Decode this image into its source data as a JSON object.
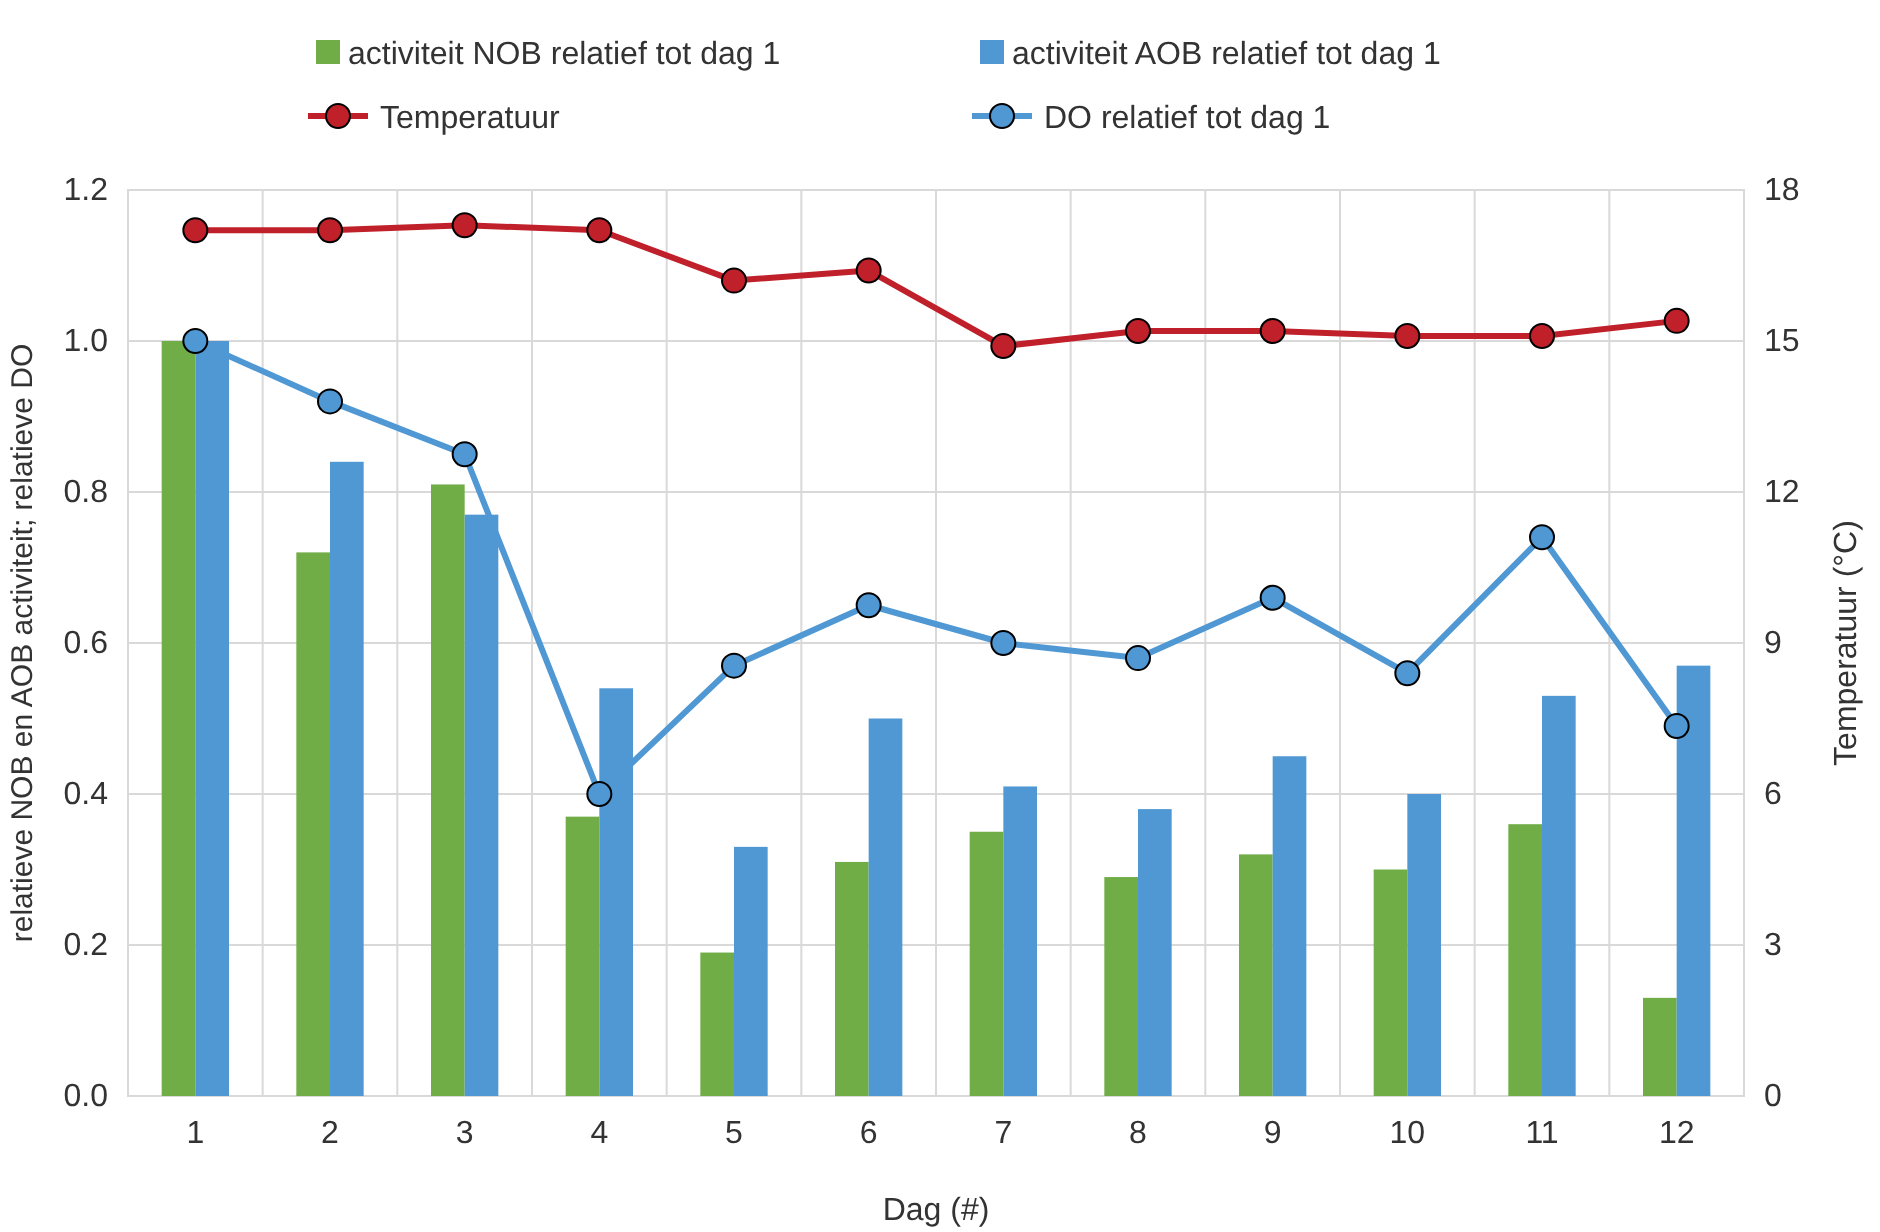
{
  "chart_data": {
    "type": "bar",
    "xlabel": "Dag (#)",
    "ylabel": "relatieve NOB en AOB activiteit; relatieve DO",
    "y2label": "Temperatuur (°C)",
    "categories": [
      "1",
      "2",
      "3",
      "4",
      "5",
      "6",
      "7",
      "8",
      "9",
      "10",
      "11",
      "12"
    ],
    "series": [
      {
        "name": "activiteit NOB relatief tot dag 1",
        "color": "#70ad47",
        "values": [
          1.0,
          0.72,
          0.81,
          0.37,
          0.19,
          0.31,
          0.35,
          0.29,
          0.32,
          0.3,
          0.36,
          0.13
        ]
      },
      {
        "name": "activiteit AOB relatief tot dag 1",
        "color": "#4f98d3",
        "values": [
          1.0,
          0.84,
          0.77,
          0.54,
          0.33,
          0.5,
          0.41,
          0.38,
          0.45,
          0.4,
          0.53,
          0.57
        ]
      },
      {
        "name": "Temperatuur",
        "type": "line",
        "axis": "y2",
        "color": "#c0202a",
        "values": [
          17.2,
          17.2,
          17.3,
          17.2,
          16.2,
          16.4,
          14.9,
          15.2,
          15.2,
          15.1,
          15.1,
          15.4
        ]
      },
      {
        "name": "DO relatief tot dag 1",
        "type": "line",
        "color": "#4f98d3",
        "values": [
          1.0,
          0.92,
          0.85,
          0.4,
          0.57,
          0.65,
          0.6,
          0.58,
          0.66,
          0.56,
          0.74,
          0.49
        ]
      }
    ],
    "ylim": [
      0,
      1.2
    ],
    "yticks": [
      {
        "value": 0,
        "label": "0.0"
      },
      {
        "value": 0.2,
        "label": "0.2"
      },
      {
        "value": 0.4,
        "label": "0.4"
      },
      {
        "value": 0.6,
        "label": "0.6"
      },
      {
        "value": 0.8,
        "label": "0.8"
      },
      {
        "value": 1.0,
        "label": "1.0"
      },
      {
        "value": 1.2,
        "label": "1.2"
      }
    ],
    "y2lim": [
      0,
      18
    ],
    "y2ticks": [
      0,
      3,
      6,
      9,
      12,
      15,
      18
    ],
    "grid": true,
    "legend": "top",
    "marker": "circle",
    "line_style": "solid"
  }
}
